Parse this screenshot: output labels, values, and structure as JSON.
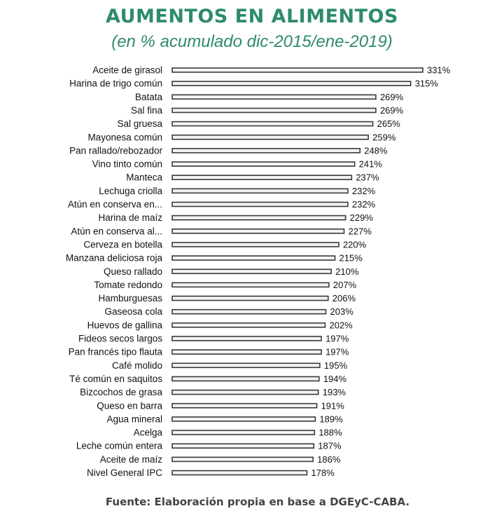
{
  "chart_data": {
    "type": "bar",
    "orientation": "horizontal",
    "title": "AUMENTOS EN ALIMENTOS",
    "subtitle": "(en % acumulado dic-2015/ene-2019)",
    "categories": [
      "Aceite de girasol",
      "Harina de trigo común",
      "Batata",
      "Sal fina",
      "Sal gruesa",
      "Mayonesa común",
      "Pan rallado/rebozador",
      "Vino tinto común",
      "Manteca",
      "Lechuga criolla",
      "Atún en conserva en...",
      "Harina de maíz",
      "Atún en conserva al...",
      "Cerveza en botella",
      "Manzana deliciosa roja",
      "Queso rallado",
      "Tomate redondo",
      "Hamburguesas",
      "Gaseosa cola",
      "Huevos de gallina",
      "Fideos secos largos",
      "Pan francés tipo flauta",
      "Café molido",
      "Té común en saquitos",
      "Bizcochos de grasa",
      "Queso en barra",
      "Agua mineral",
      "Acelga",
      "Leche común entera",
      "Aceite de maíz",
      "Nivel General IPC"
    ],
    "values": [
      331,
      315,
      269,
      269,
      265,
      259,
      248,
      241,
      237,
      232,
      232,
      229,
      227,
      220,
      215,
      210,
      207,
      206,
      203,
      202,
      197,
      197,
      195,
      194,
      193,
      191,
      189,
      188,
      187,
      186,
      178
    ],
    "labels": [
      "331%",
      "315%",
      "269%",
      "269%",
      "265%",
      "259%",
      "248%",
      "241%",
      "237%",
      "232%",
      "232%",
      "229%",
      "227%",
      "220%",
      "215%",
      "210%",
      "207%",
      "206%",
      "203%",
      "202%",
      "197%",
      "197%",
      "195%",
      "194%",
      "193%",
      "191%",
      "189%",
      "188%",
      "187%",
      "186%",
      "178%"
    ],
    "xlim": [
      0,
      331
    ],
    "grid": false,
    "legend": "none"
  },
  "footer": {
    "source": "Fuente: Elaboración propia en base a DGEyC-CABA."
  },
  "colors": {
    "title": "#2e8b6b",
    "bar_fill": "#f3f3ef",
    "bar_stroke": "#3a3a3a",
    "text": "#111111"
  }
}
